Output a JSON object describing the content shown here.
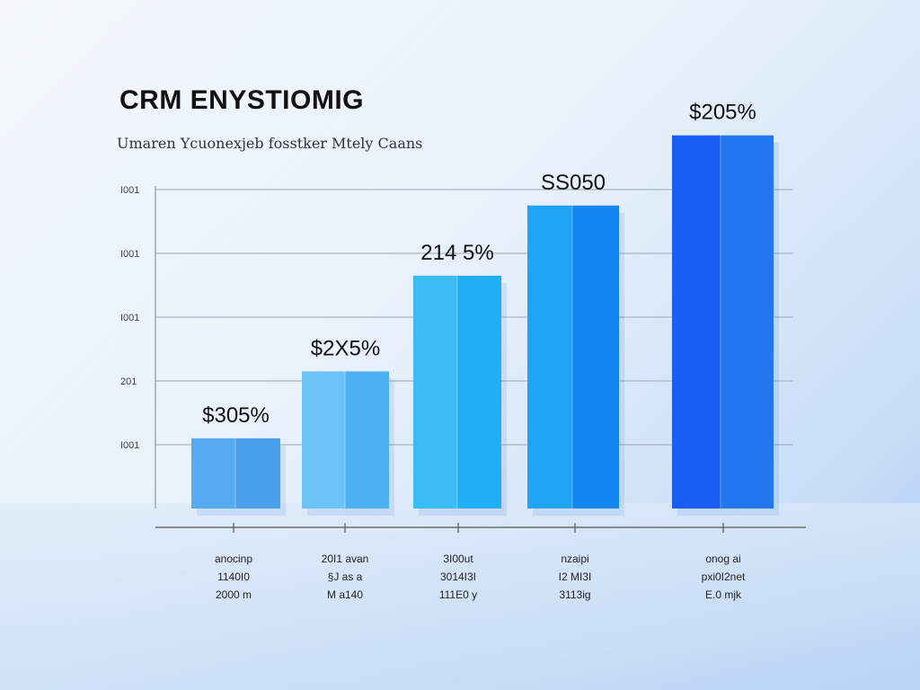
{
  "chart_data": {
    "type": "bar",
    "title": "CRM ENYSTIOMIG",
    "subtitle": "Umaren Ycuonexjeb fosstker Mtely Caans",
    "xlabel": "",
    "ylabel": "",
    "ylim": [
      0,
      6
    ],
    "grid": true,
    "y_ticks": [
      {
        "value": 5,
        "label": "I001"
      },
      {
        "value": 4,
        "label": "I001"
      },
      {
        "value": 3,
        "label": "I001"
      },
      {
        "value": 2,
        "label": "201"
      },
      {
        "value": 1,
        "label": "I001"
      }
    ],
    "categories": [
      [
        "anocinp",
        "1140I0",
        "2000 m"
      ],
      [
        "20I1 avan",
        "§J as a",
        "M a140"
      ],
      [
        "3I00ut",
        "3014I3I",
        "111E0 y"
      ],
      [
        "nzaipi",
        "I2 MI3I",
        "3113ig"
      ],
      [
        "onog ai",
        "pxi0I2net",
        "E.0 mjk"
      ]
    ],
    "values": [
      1.1,
      2.15,
      3.65,
      4.75,
      5.85
    ],
    "data_labels": [
      "$305%",
      "$2X5%",
      "214 5%",
      "SS050",
      "$205%"
    ],
    "colors": [
      [
        "#55aaf0",
        "#4aa0ea"
      ],
      [
        "#6cc4f6",
        "#4db0f2"
      ],
      [
        "#3cbcf6",
        "#22aef6"
      ],
      [
        "#20a4f6",
        "#1486f2"
      ],
      [
        "#1a5ff2",
        "#2277f0"
      ]
    ]
  }
}
